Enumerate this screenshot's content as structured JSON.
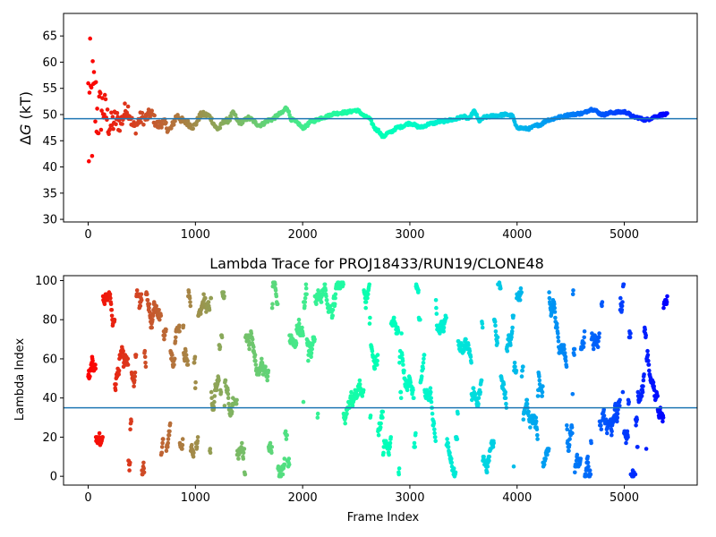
{
  "figure": {
    "background": "#ffffff"
  },
  "chart_data": [
    {
      "type": "scatter",
      "title": "",
      "xlabel": "",
      "ylabel_prefix": "Δ",
      "ylabel_italic": "G",
      "ylabel_suffix": " (kT)",
      "xlim": [
        -230,
        5680
      ],
      "ylim": [
        29.5,
        69.3
      ],
      "xticks": [
        0,
        1000,
        2000,
        3000,
        4000,
        5000
      ],
      "xtick_labels": [
        "0",
        "1000",
        "2000",
        "3000",
        "4000",
        "5000"
      ],
      "yticks": [
        30,
        35,
        40,
        45,
        50,
        55,
        60,
        65
      ],
      "ytick_labels": [
        "30",
        "35",
        "40",
        "45",
        "50",
        "55",
        "60",
        "65"
      ],
      "hline": {
        "y": 49.2,
        "color": "#1f77b4"
      },
      "grid": false,
      "colormap": "rainbow_r",
      "frame_count": 5400,
      "trace_anchors": [
        [
          0,
          49.0
        ],
        [
          60,
          51.5
        ],
        [
          150,
          50.0
        ],
        [
          250,
          48.0
        ],
        [
          350,
          50.5
        ],
        [
          450,
          48.0
        ],
        [
          550,
          50.0
        ],
        [
          650,
          48.5
        ],
        [
          750,
          47.5
        ],
        [
          850,
          49.5
        ],
        [
          950,
          47.8
        ],
        [
          1100,
          50.2
        ],
        [
          1200,
          47.5
        ],
        [
          1300,
          48.8
        ],
        [
          1350,
          50.3
        ],
        [
          1400,
          48.5
        ],
        [
          1500,
          49.2
        ],
        [
          1600,
          48.0
        ],
        [
          1700,
          49.0
        ],
        [
          1800,
          50.2
        ],
        [
          1850,
          51.3
        ],
        [
          1900,
          49.0
        ],
        [
          1950,
          48.4
        ],
        [
          2000,
          47.5
        ],
        [
          2100,
          48.8
        ],
        [
          2200,
          49.5
        ],
        [
          2300,
          50.2
        ],
        [
          2400,
          50.4
        ],
        [
          2500,
          50.8
        ],
        [
          2600,
          49.5
        ],
        [
          2700,
          47.0
        ],
        [
          2750,
          45.8
        ],
        [
          2800,
          46.5
        ],
        [
          2900,
          47.6
        ],
        [
          3000,
          48.3
        ],
        [
          3100,
          47.6
        ],
        [
          3200,
          48.3
        ],
        [
          3300,
          48.7
        ],
        [
          3400,
          49.0
        ],
        [
          3500,
          49.6
        ],
        [
          3550,
          49.2
        ],
        [
          3600,
          50.6
        ],
        [
          3650,
          48.8
        ],
        [
          3700,
          49.5
        ],
        [
          3800,
          49.8
        ],
        [
          3900,
          50.0
        ],
        [
          3950,
          49.8
        ],
        [
          4000,
          47.5
        ],
        [
          4100,
          47.3
        ],
        [
          4200,
          48.0
        ],
        [
          4300,
          49.0
        ],
        [
          4400,
          49.5
        ],
        [
          4500,
          50.0
        ],
        [
          4600,
          50.2
        ],
        [
          4700,
          51.0
        ],
        [
          4800,
          50.0
        ],
        [
          4900,
          50.4
        ],
        [
          5000,
          50.5
        ],
        [
          5100,
          49.5
        ],
        [
          5200,
          49.0
        ],
        [
          5300,
          49.6
        ],
        [
          5350,
          50.0
        ],
        [
          5400,
          50.0
        ]
      ]
    },
    {
      "type": "scatter",
      "title": "Lambda Trace for PROJ18433/RUN19/CLONE48",
      "xlabel": "Frame Index",
      "ylabel": "Lambda Index",
      "xlim": [
        -230,
        5680
      ],
      "ylim": [
        -4.5,
        102.5
      ],
      "xticks": [
        0,
        1000,
        2000,
        3000,
        4000,
        5000
      ],
      "xtick_labels": [
        "0",
        "1000",
        "2000",
        "3000",
        "4000",
        "5000"
      ],
      "yticks": [
        0,
        20,
        40,
        60,
        80,
        100
      ],
      "ytick_labels": [
        "0",
        "20",
        "40",
        "60",
        "80",
        "100"
      ],
      "hline": {
        "y": 35,
        "color": "#1f77b4"
      },
      "grid": false,
      "colormap": "rainbow_r",
      "frame_count": 5400,
      "lambda_range": [
        0,
        99
      ]
    }
  ]
}
